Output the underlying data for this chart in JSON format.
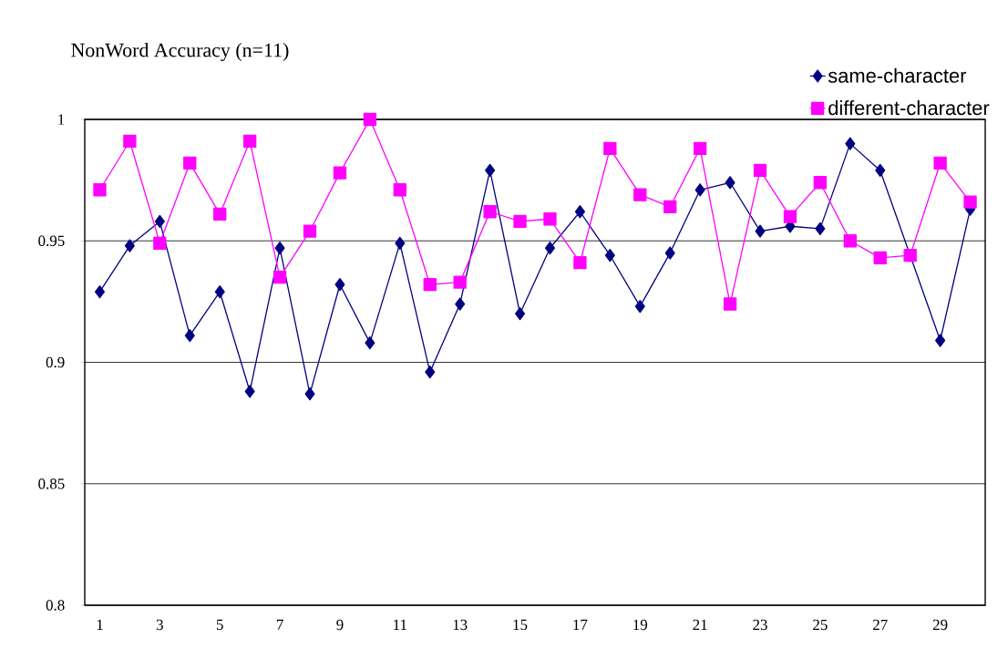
{
  "chart_data": {
    "type": "line",
    "title": "NonWord Accuracy (n=11)",
    "categories": [
      "1",
      null,
      "3",
      null,
      "5",
      null,
      "7",
      null,
      "9",
      null,
      "11",
      null,
      "13",
      null,
      "15",
      null,
      "17",
      null,
      "19",
      null,
      "21",
      null,
      "23",
      null,
      "25",
      null,
      "27",
      null,
      "29",
      null
    ],
    "series": [
      {
        "name": "same-character",
        "color": "#000080",
        "marker": "diamond",
        "values": [
          0.929,
          0.948,
          0.958,
          0.911,
          0.929,
          0.888,
          0.947,
          0.887,
          0.932,
          0.908,
          0.949,
          0.896,
          0.924,
          0.979,
          0.92,
          0.947,
          0.962,
          0.944,
          0.923,
          0.945,
          0.971,
          0.974,
          0.954,
          0.956,
          0.955,
          0.99,
          0.979,
          0.944,
          0.909,
          0.963
        ]
      },
      {
        "name": "different-character",
        "color": "#ff00ff",
        "marker": "square",
        "values": [
          0.971,
          0.991,
          0.949,
          0.982,
          0.961,
          0.991,
          0.935,
          0.954,
          0.978,
          1.0,
          0.971,
          0.932,
          0.933,
          0.962,
          0.958,
          0.959,
          0.941,
          0.988,
          0.969,
          0.964,
          0.988,
          0.924,
          0.979,
          0.96,
          0.974,
          0.95,
          0.943,
          0.944,
          0.982,
          0.966
        ]
      }
    ],
    "ylim": [
      0.8,
      1
    ],
    "yticks": [
      0.8,
      0.85,
      0.9,
      0.95,
      1
    ],
    "grid": "y",
    "legend": "top right",
    "line_style": "solid"
  }
}
